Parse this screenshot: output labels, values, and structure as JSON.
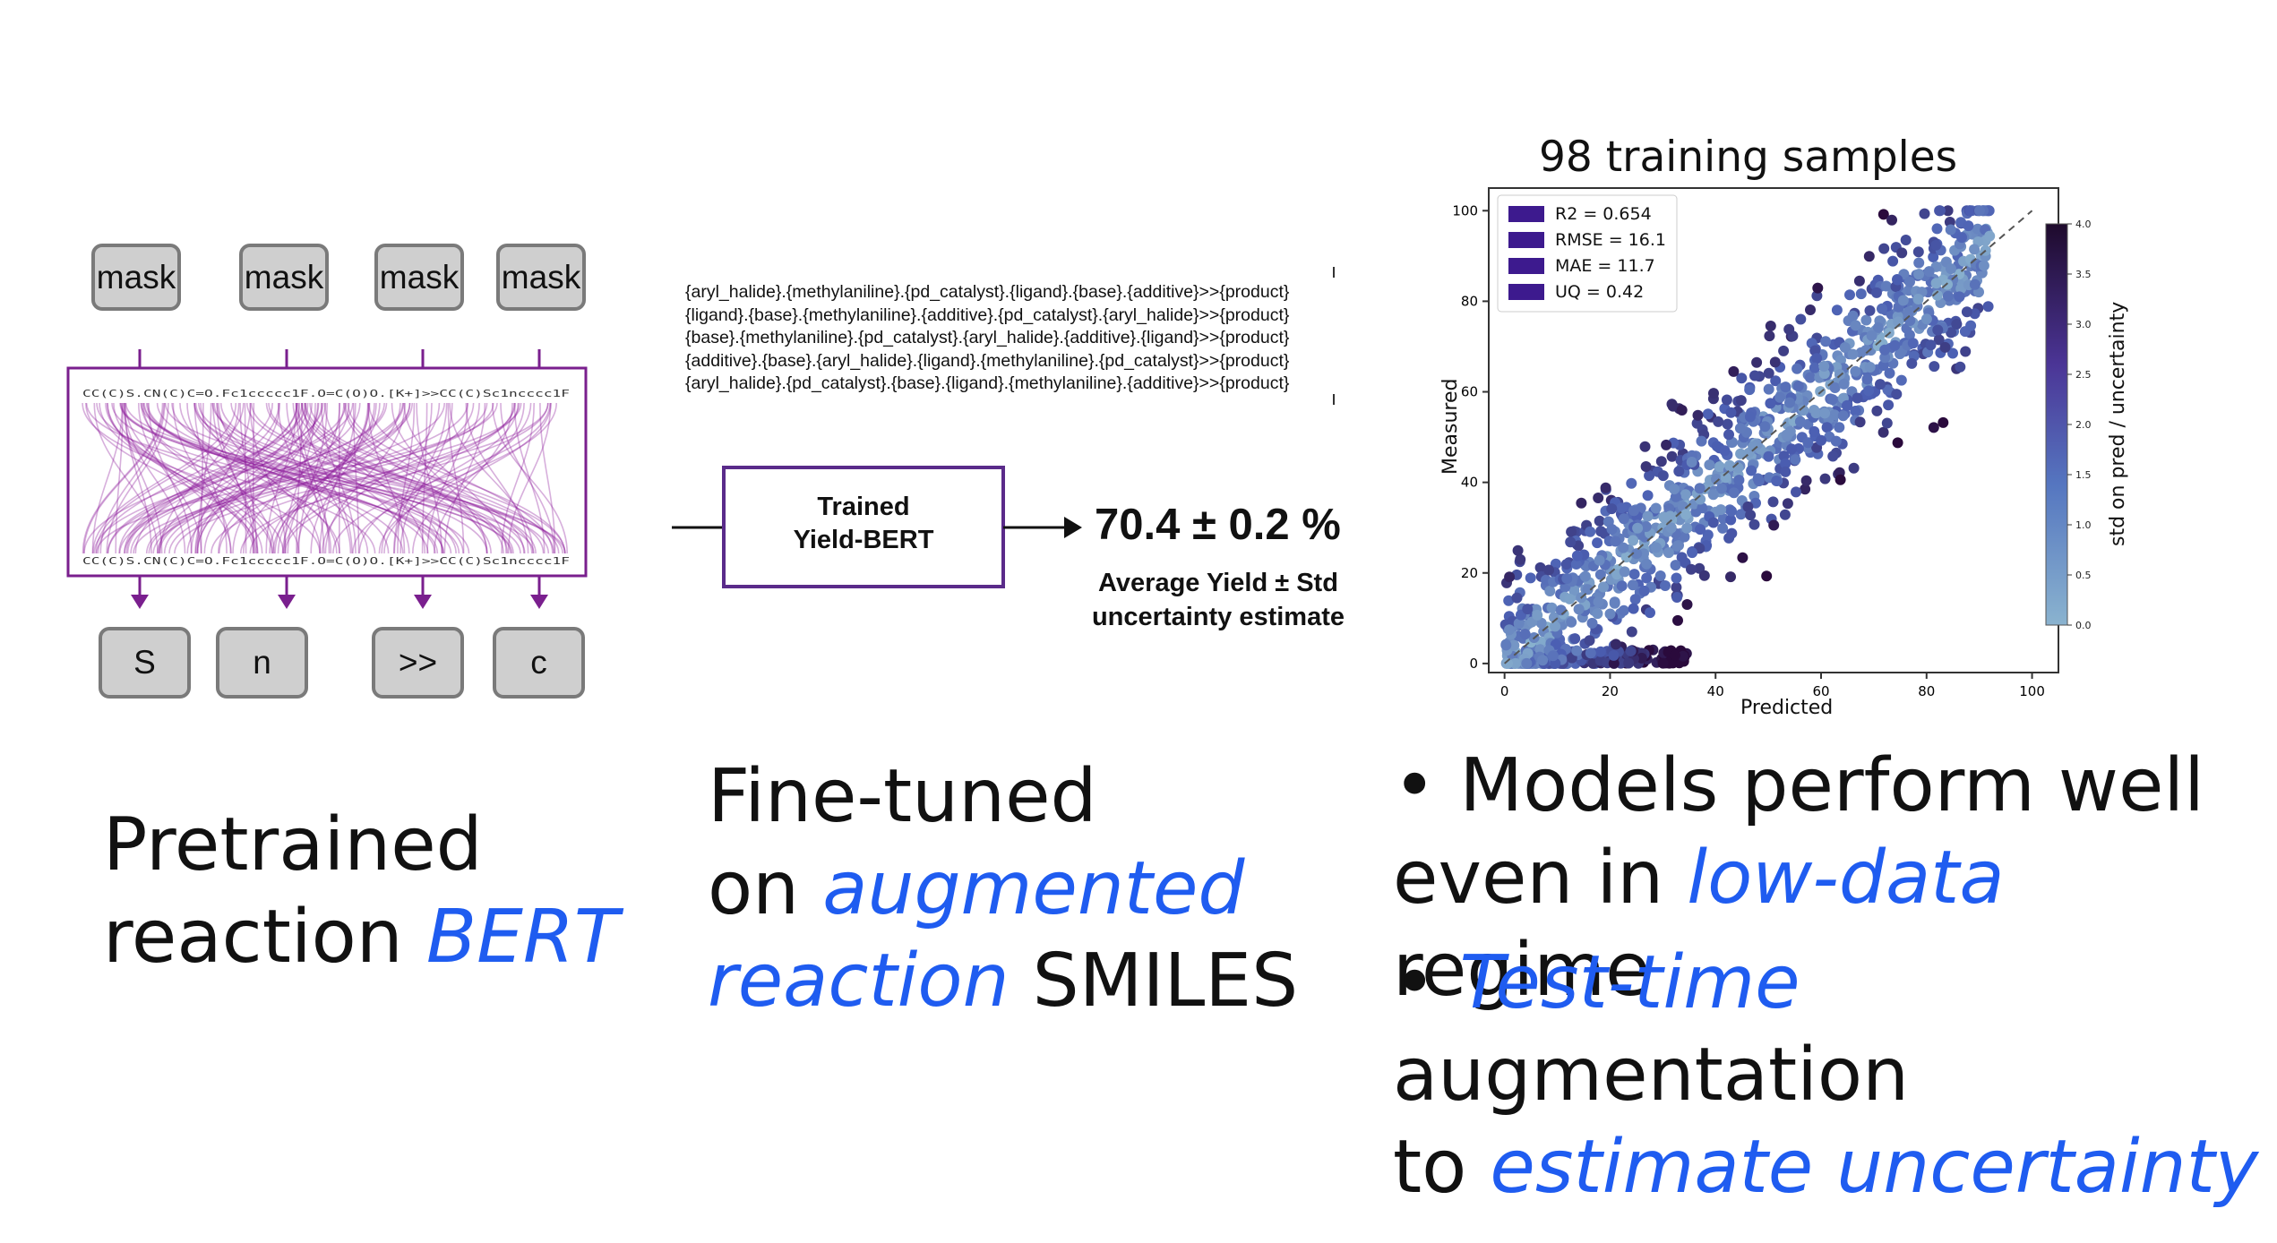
{
  "left": {
    "mask_tokens": [
      "mask",
      "mask",
      "mask",
      "mask"
    ],
    "output_tokens": [
      "S",
      "n",
      ">>",
      "c"
    ],
    "smiles_string": "CC(C)S.CN(C)C=O.Fc1ccccc1F.O=C(O)O.[K+]>>CC(C)Sc1ncccc1F",
    "caption_line1": "Pretrained",
    "caption_line2_plain": "reaction ",
    "caption_line2_accent": "BERT"
  },
  "middle": {
    "smiles_lines": [
      "{aryl_halide}.{methylaniline}.{pd_catalyst}.{ligand}.{base}.{additive}>>{product}",
      "{ligand}.{base}.{methylaniline}.{additive}.{pd_catalyst}.{aryl_halide}>>{product}",
      "{base}.{methylaniline}.{pd_catalyst}.{aryl_halide}.{additive}.{ligand}>>{product}",
      "{additive}.{base}.{aryl_halide}.{ligand}.{methylaniline}.{pd_catalyst}>>{product}",
      "{aryl_halide}.{pd_catalyst}.{base}.{ligand}.{methylaniline}.{additive}>>{product}"
    ],
    "model_label_line1": "Trained",
    "model_label_line2": "Yield-BERT",
    "yield_value": "70.4 ± 0.2 %",
    "yield_desc_line1": "Average Yield ± Std",
    "yield_desc_line2": "uncertainty estimate",
    "caption_line1": "Fine-tuned",
    "caption_line2_plain": "on ",
    "caption_line2_accent": "augmented",
    "caption_line3_accent": "reaction",
    "caption_line3_plain": " SMILES"
  },
  "right": {
    "bullet1_line1": "• Models perform well",
    "bullet1_line2_plain_a": "even in ",
    "bullet1_line2_accent": "low-data",
    "bullet1_line2_plain_b": " regime",
    "bullet2_line1_plain_a": "• ",
    "bullet2_line1_accent": "Test-time",
    "bullet2_line1_plain_b": " augmentation",
    "bullet2_line2_plain": "to ",
    "bullet2_line2_accent": "estimate uncertainty"
  },
  "chart_data": {
    "type": "scatter",
    "title": "98 training samples",
    "xlabel": "Predicted",
    "ylabel": "Measured",
    "colorbar_label": "std on pred / uncertainty",
    "xlim": [
      -3,
      105
    ],
    "ylim": [
      -2,
      105
    ],
    "xticks": [
      0,
      20,
      40,
      60,
      80,
      100
    ],
    "yticks": [
      0,
      20,
      40,
      60,
      80,
      100
    ],
    "colorbar_ticks": [
      "0.0",
      "0.5",
      "1.0",
      "1.5",
      "2.0",
      "2.5",
      "3.0",
      "3.5",
      "4.0"
    ],
    "colorbar_range": [
      0,
      4
    ],
    "legend_position": "top-left",
    "legend": [
      "R2 = 0.654",
      "RMSE = 16.1",
      "MAE = 11.7",
      "UQ = 0.42"
    ],
    "diagonal": [
      [
        0,
        0
      ],
      [
        100,
        100
      ]
    ],
    "point_count": 1200,
    "colors": {
      "low": "#8ab3cf",
      "mid": "#4b5fb3",
      "high": "#2a0a3c",
      "legend_swatch": "#3d1a8e"
    }
  },
  "colors": {
    "accent": "#1f5cf0",
    "purple": "#7a1f8e",
    "model_border": "#5a2b8a"
  }
}
